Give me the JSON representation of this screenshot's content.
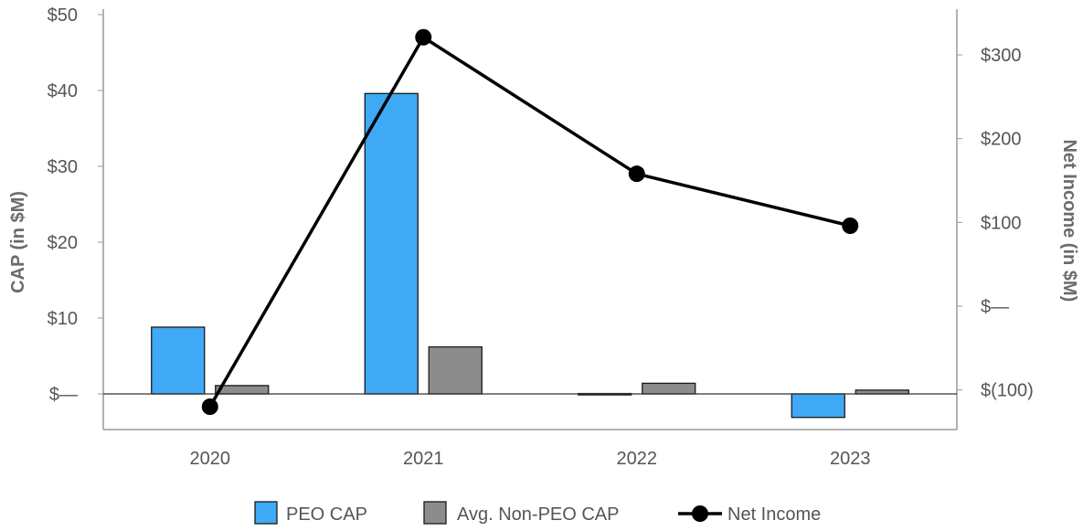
{
  "chart_data": {
    "type": "bar",
    "categories": [
      "2020",
      "2021",
      "2022",
      "2023"
    ],
    "series": [
      {
        "name": "PEO CAP",
        "type": "bar",
        "axis": "left",
        "color": "#3fa9f5",
        "values": [
          8.8,
          39.6,
          0.05,
          -3.1
        ]
      },
      {
        "name": "Avg. Non-PEO CAP",
        "type": "bar",
        "axis": "left",
        "color": "#8c8c8c",
        "values": [
          1.1,
          6.2,
          1.4,
          0.5
        ]
      },
      {
        "name": "Net Income",
        "type": "line",
        "axis": "right",
        "color": "#000000",
        "values": [
          -120,
          321,
          158,
          96
        ]
      }
    ],
    "y_left": {
      "label": "CAP (in $M)",
      "range": [
        -4.5,
        50
      ],
      "ticks": [
        0,
        10,
        20,
        30,
        40,
        50
      ],
      "tick_labels": [
        "$—",
        "$10",
        "$20",
        "$30",
        "$40",
        "$50"
      ]
    },
    "y_right": {
      "label": "Net Income (in $M)",
      "range": [
        -140,
        450
      ],
      "ticks": [
        -100,
        0,
        100,
        200,
        300
      ],
      "tick_labels": [
        "$(100)",
        "$—",
        "$100",
        "$200",
        "$300"
      ]
    },
    "grid": false,
    "legend_position": "bottom"
  }
}
